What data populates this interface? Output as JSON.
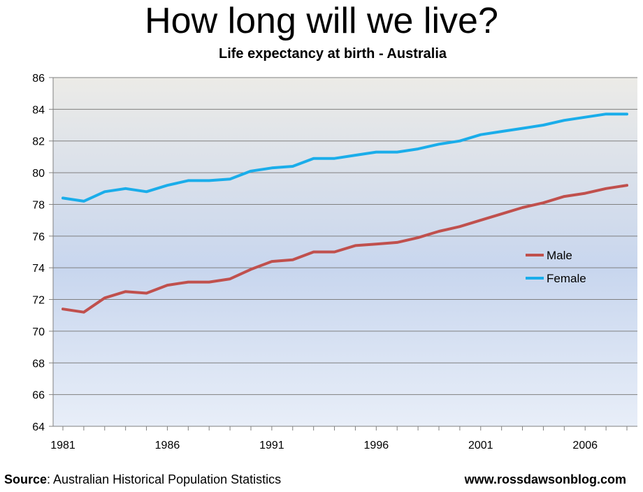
{
  "title": "How long will we live?",
  "footer": {
    "source_label": "Source",
    "source_text": ":  Australian Historical Population Statistics",
    "url": "www.rossdawsonblog.com"
  },
  "colors": {
    "male": "#C0504D",
    "female": "#1AADEA",
    "plot_bg_top": "#ECEBE7",
    "plot_bg_mid": "#C8D6EE",
    "plot_bg_bottom": "#E8EEF8",
    "gridline": "#808080"
  },
  "chart_data": {
    "type": "line",
    "title": "Life expectancy at birth - Australia",
    "xlabel": "",
    "ylabel": "",
    "x": [
      1981,
      1982,
      1983,
      1984,
      1985,
      1986,
      1987,
      1988,
      1989,
      1990,
      1991,
      1992,
      1993,
      1994,
      1995,
      1996,
      1997,
      1998,
      1999,
      2000,
      2001,
      2002,
      2003,
      2004,
      2005,
      2006,
      2007,
      2008
    ],
    "x_ticks": [
      "1981",
      "1986",
      "1991",
      "1996",
      "2001",
      "2006"
    ],
    "ylim": [
      64,
      86
    ],
    "y_ticks": [
      "64",
      "66",
      "68",
      "70",
      "72",
      "74",
      "76",
      "78",
      "80",
      "82",
      "84",
      "86"
    ],
    "grid": true,
    "legend_position": "right",
    "series": [
      {
        "name": "Male",
        "values": [
          71.4,
          71.2,
          72.1,
          72.5,
          72.4,
          72.9,
          73.1,
          73.1,
          73.3,
          73.9,
          74.4,
          74.5,
          75.0,
          75.0,
          75.4,
          75.5,
          75.6,
          75.9,
          76.3,
          76.6,
          77.0,
          77.4,
          77.8,
          78.1,
          78.5,
          78.7,
          79.0,
          79.2
        ]
      },
      {
        "name": "Female",
        "values": [
          78.4,
          78.2,
          78.8,
          79.0,
          78.8,
          79.2,
          79.5,
          79.5,
          79.6,
          80.1,
          80.3,
          80.4,
          80.9,
          80.9,
          81.1,
          81.3,
          81.3,
          81.5,
          81.8,
          82.0,
          82.4,
          82.6,
          82.8,
          83.0,
          83.3,
          83.5,
          83.7,
          83.7
        ]
      }
    ]
  }
}
